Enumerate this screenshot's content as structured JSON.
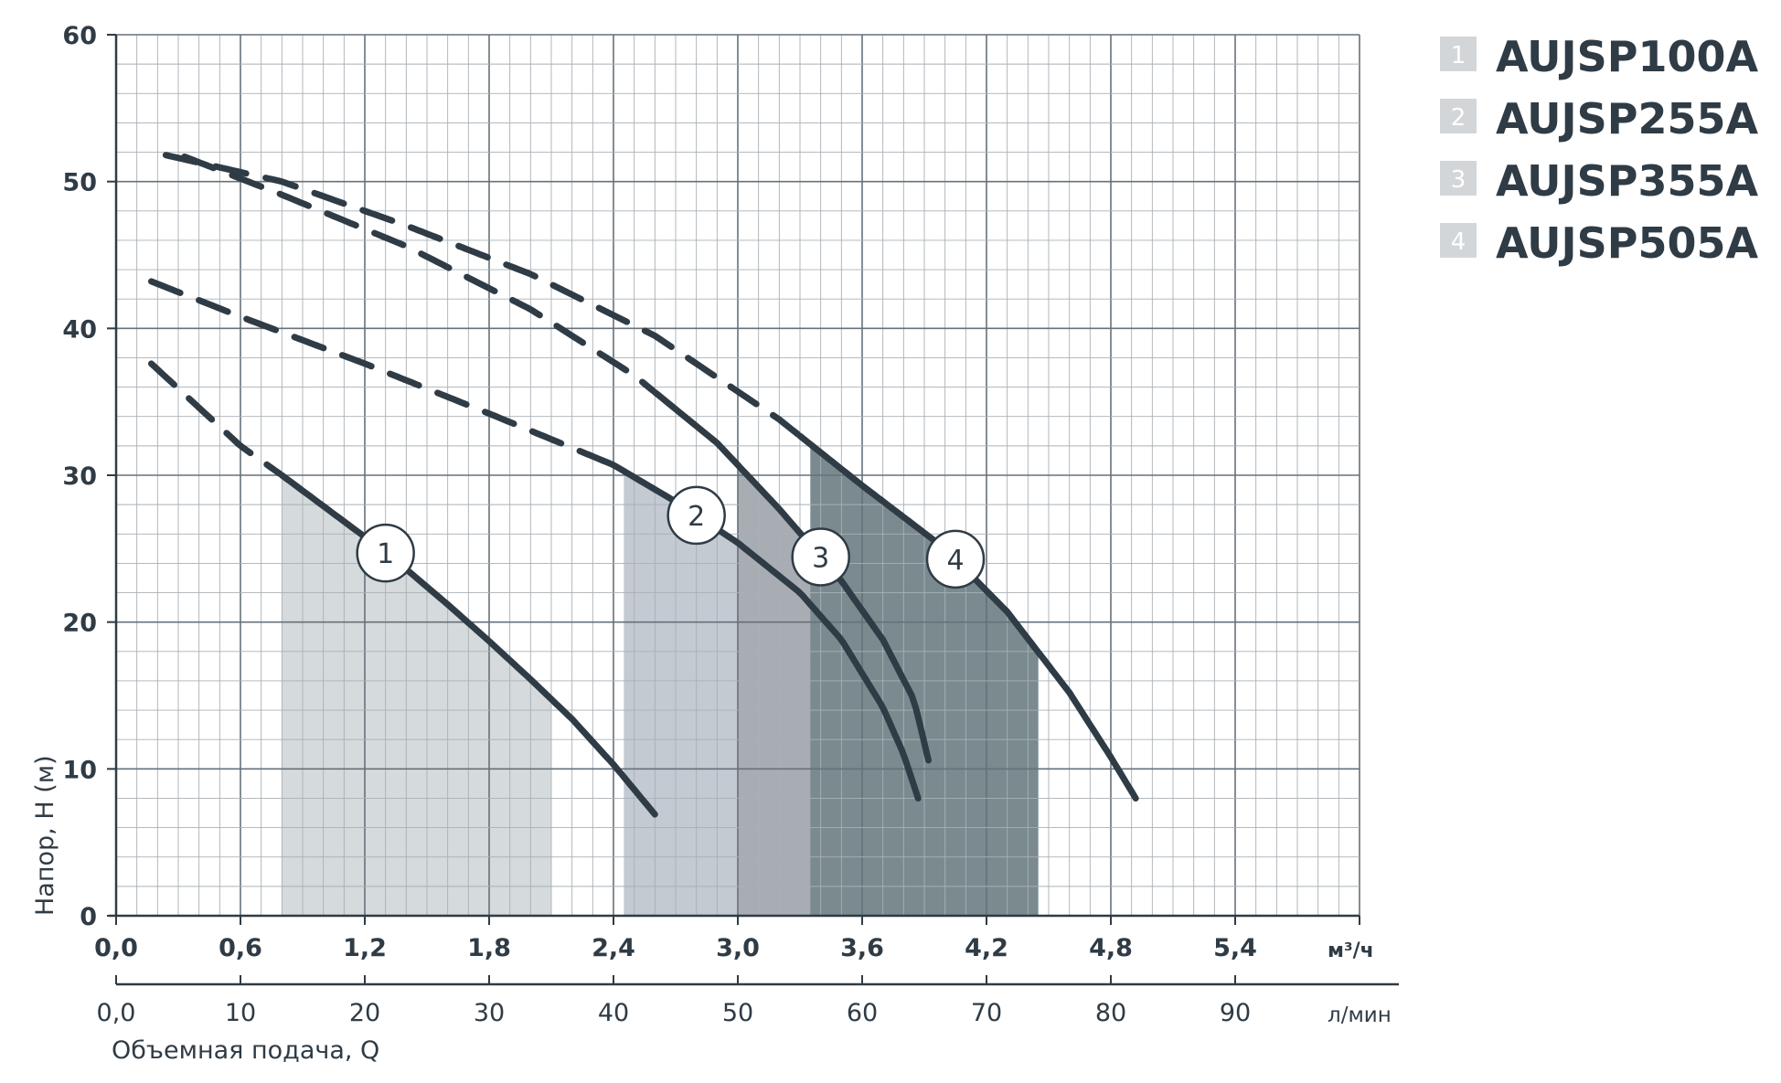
{
  "colors": {
    "curve": "#2f3b45",
    "grid_major": "#66717a",
    "grid_minor": "#a9b0b6",
    "axis": "#2f3b45",
    "text": "#2f3b45",
    "legend_box": "#d3d6d8"
  },
  "chart_data": {
    "type": "line",
    "xlabel": "Объемная подача, Q",
    "ylabel": "Напор, Н (м)",
    "x_unit": "м³/ч",
    "x2_unit": "л/мин",
    "xlim": [
      0,
      6.0
    ],
    "ylim": [
      0,
      60
    ],
    "grid": true,
    "legend_position": "top-right",
    "x_ticks": [
      "0,0",
      "0,6",
      "1,2",
      "1,8",
      "2,4",
      "3,0",
      "3,6",
      "4,2",
      "4,8",
      "5,4"
    ],
    "x_tick_values": [
      0,
      0.6,
      1.2,
      1.8,
      2.4,
      3.0,
      3.6,
      4.2,
      4.8,
      5.4
    ],
    "x2_ticks": [
      "0,0",
      "10",
      "20",
      "30",
      "40",
      "50",
      "60",
      "70",
      "80",
      "90"
    ],
    "x2_tick_values": [
      0,
      10,
      20,
      30,
      40,
      50,
      60,
      70,
      80,
      90
    ],
    "y_ticks": [
      "0",
      "10",
      "20",
      "30",
      "40",
      "50",
      "60"
    ],
    "y_tick_values": [
      0,
      10,
      20,
      30,
      40,
      50,
      60
    ],
    "series": [
      {
        "name": "AUJSP100A",
        "label": "1",
        "legend_number": "1",
        "points": [
          [
            0.17,
            37.6
          ],
          [
            0.4,
            34.6
          ],
          [
            0.6,
            32.0
          ],
          [
            0.8,
            30.0
          ],
          [
            1.0,
            27.9
          ],
          [
            1.2,
            25.8
          ],
          [
            1.4,
            23.6
          ],
          [
            1.6,
            21.2
          ],
          [
            1.8,
            18.7
          ],
          [
            2.0,
            16.1
          ],
          [
            2.2,
            13.4
          ],
          [
            2.4,
            10.3
          ],
          [
            2.6,
            6.9
          ]
        ],
        "solid_from": 0.8,
        "work_range": [
          0.8,
          2.1
        ],
        "fill": "#d5dadc",
        "marker_x": 1.3
      },
      {
        "name": "AUJSP255A",
        "label": "2",
        "legend_number": "2",
        "points": [
          [
            0.17,
            43.2
          ],
          [
            0.6,
            40.8
          ],
          [
            1.2,
            37.6
          ],
          [
            1.8,
            34.2
          ],
          [
            2.4,
            30.7
          ],
          [
            2.7,
            28.2
          ],
          [
            3.0,
            25.4
          ],
          [
            3.3,
            22.0
          ],
          [
            3.5,
            18.8
          ],
          [
            3.7,
            14.2
          ],
          [
            3.8,
            11.0
          ],
          [
            3.87,
            8.0
          ]
        ],
        "solid_from": 2.35,
        "work_range": [
          2.45,
          3.6
        ],
        "fill": "#c3cad1",
        "marker_x": 2.8
      },
      {
        "name": "AUJSP355A",
        "label": "3",
        "legend_number": "3",
        "points": [
          [
            0.33,
            51.7
          ],
          [
            0.8,
            49.1
          ],
          [
            1.4,
            45.6
          ],
          [
            2.0,
            41.3
          ],
          [
            2.5,
            36.8
          ],
          [
            2.9,
            32.2
          ],
          [
            3.2,
            27.7
          ],
          [
            3.5,
            22.8
          ],
          [
            3.7,
            18.8
          ],
          [
            3.85,
            14.7
          ],
          [
            3.93,
            10.0
          ]
        ],
        "solid_from": 2.6,
        "work_range": [
          3.0,
          3.85
        ],
        "fill": "#a8adb4",
        "marker_x": 3.4
      },
      {
        "name": "AUJSP505A",
        "label": "4",
        "legend_number": "4",
        "points": [
          [
            0.24,
            51.8
          ],
          [
            0.8,
            50.0
          ],
          [
            1.4,
            47.0
          ],
          [
            2.0,
            43.7
          ],
          [
            2.6,
            39.5
          ],
          [
            3.2,
            33.8
          ],
          [
            3.6,
            29.3
          ],
          [
            4.0,
            25.0
          ],
          [
            4.3,
            20.7
          ],
          [
            4.6,
            15.2
          ],
          [
            4.8,
            10.8
          ],
          [
            4.92,
            8.0
          ]
        ],
        "solid_from": 3.3,
        "work_range": [
          3.35,
          4.45
        ],
        "fill": "#7a8a8f",
        "marker_x": 4.05
      }
    ]
  }
}
